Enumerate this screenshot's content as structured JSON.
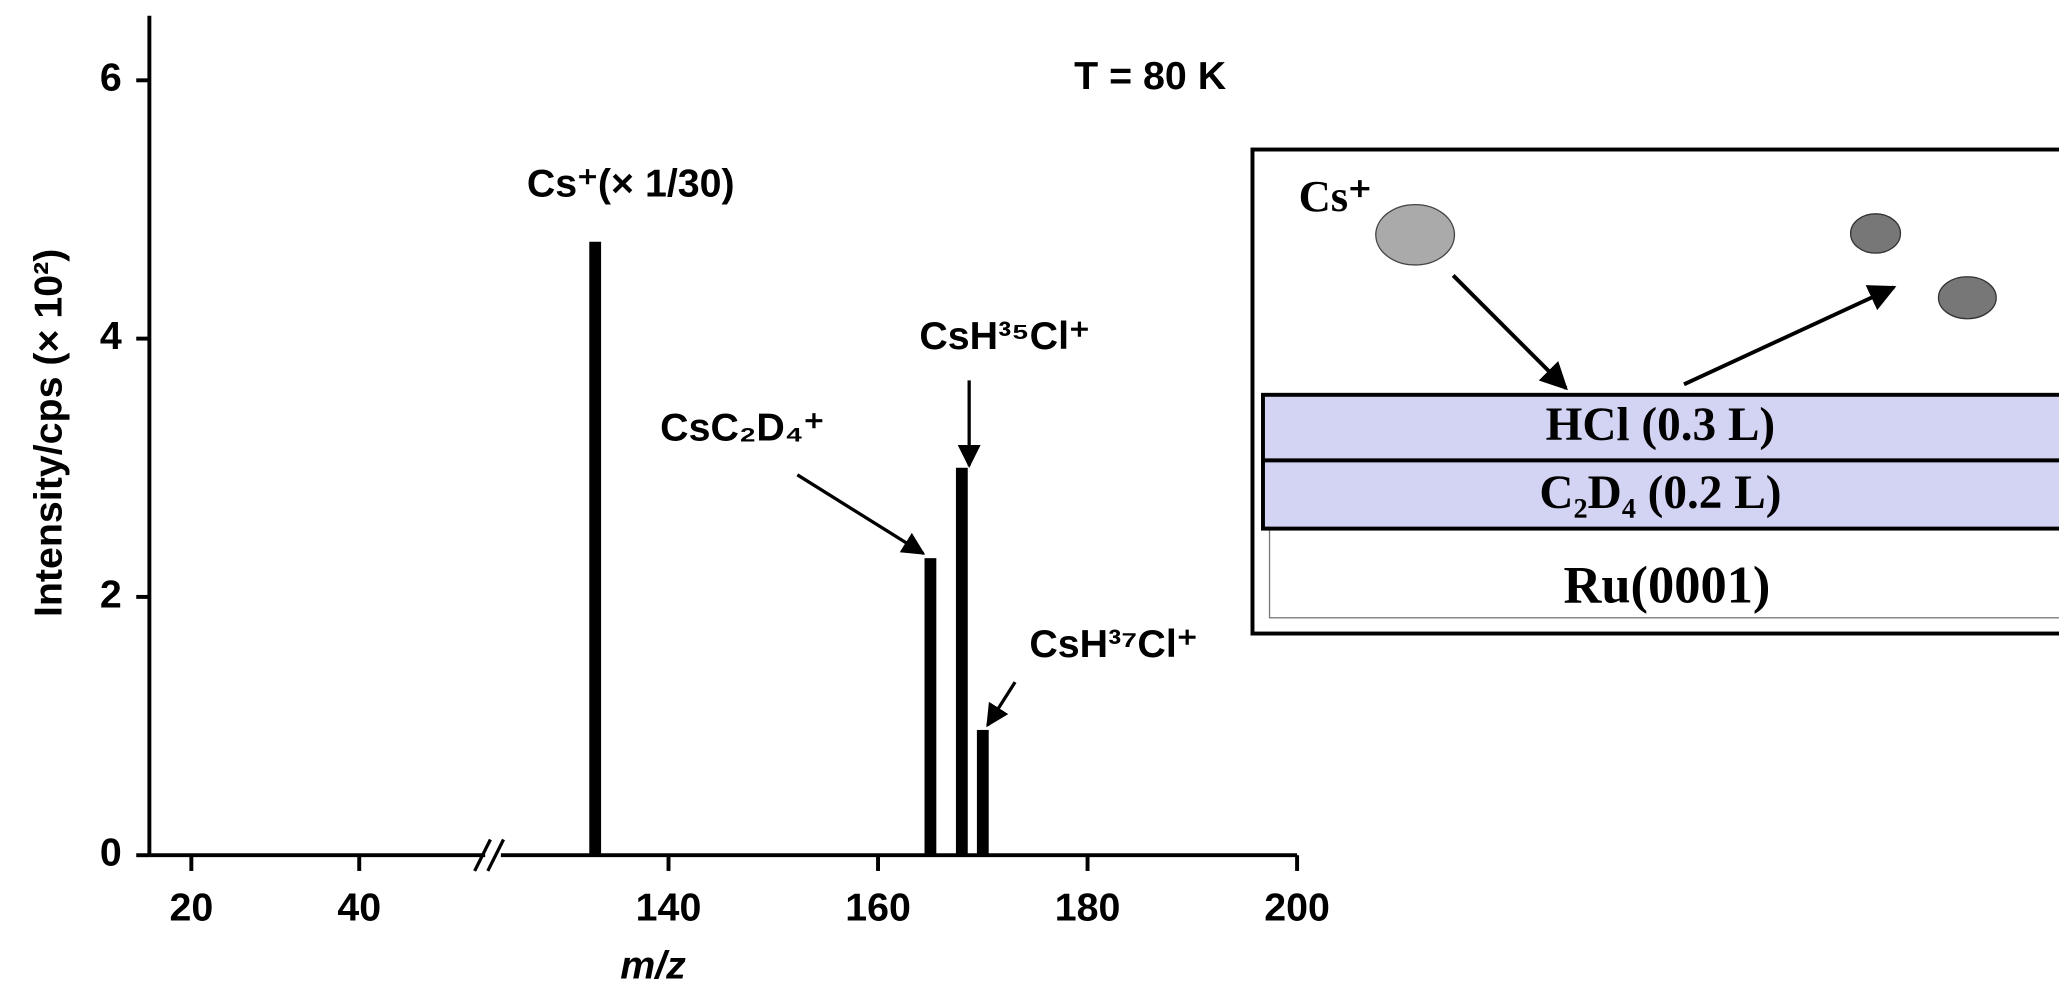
{
  "chart_data": {
    "type": "bar",
    "annotation": "T = 80 K",
    "xlabel": "m/z",
    "ylabel": "Intensity/cps (× 10²)",
    "x": [
      133,
      165,
      168,
      170
    ],
    "values": [
      4.75,
      2.3,
      3.0,
      0.97
    ],
    "point_labels": [
      "Cs⁺(× 1/30)",
      "CsC₂D₄⁺",
      "CsH³⁵Cl⁺",
      "CsH³⁷Cl⁺"
    ],
    "color": "#000000",
    "x_segments": [
      {
        "xlim": [
          15,
          55
        ],
        "xticks": [
          20,
          40
        ]
      },
      {
        "xlim": [
          124,
          200
        ],
        "xticks": [
          140,
          160,
          180,
          200
        ]
      }
    ],
    "ylim": [
      0,
      6.5
    ],
    "yticks": [
      0,
      2,
      4,
      6
    ],
    "inset": {
      "ion": "Cs⁺",
      "layers": [
        "HCl (0.3 L)",
        "C₂D₄ (0.2 L)",
        "Ru(0001)"
      ]
    }
  }
}
